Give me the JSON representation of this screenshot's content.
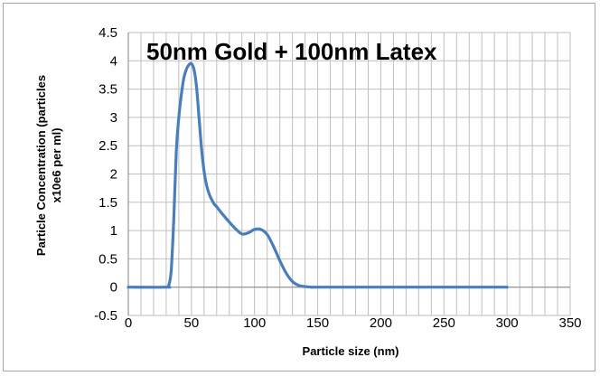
{
  "chart_data": {
    "type": "line",
    "title": "50nm Gold + 100nm Latex",
    "xlabel": "Particle size (nm)",
    "ylabel_lines": [
      "Particle Concentration (particles",
      "x10e6 per ml)"
    ],
    "xlim": [
      0,
      350
    ],
    "ylim": [
      -0.5,
      4.5
    ],
    "xticks": [
      0,
      50,
      100,
      150,
      200,
      250,
      300,
      350
    ],
    "yticks": [
      -0.5,
      0,
      0.5,
      1,
      1.5,
      2,
      2.5,
      3,
      3.5,
      4,
      4.5
    ],
    "x_minor_step": 10,
    "grid": true,
    "legend": "none",
    "series": [
      {
        "color": "#4a7ebb",
        "x": [
          0,
          30,
          32,
          34,
          36,
          38,
          40,
          42,
          44,
          46,
          48,
          50,
          52,
          54,
          56,
          58,
          60,
          62,
          64,
          66,
          68,
          70,
          75,
          80,
          85,
          90,
          95,
          100,
          105,
          110,
          115,
          120,
          125,
          130,
          135,
          140,
          145,
          150,
          200,
          250,
          300
        ],
        "y": [
          0,
          0,
          0.03,
          0.3,
          1.2,
          2.4,
          3.0,
          3.4,
          3.7,
          3.85,
          3.93,
          3.95,
          3.85,
          3.55,
          3.0,
          2.45,
          2.05,
          1.8,
          1.65,
          1.55,
          1.47,
          1.42,
          1.28,
          1.15,
          1.03,
          0.94,
          0.96,
          1.02,
          1.02,
          0.93,
          0.72,
          0.47,
          0.25,
          0.1,
          0.03,
          0.01,
          0,
          0,
          0,
          0,
          0
        ]
      }
    ]
  }
}
